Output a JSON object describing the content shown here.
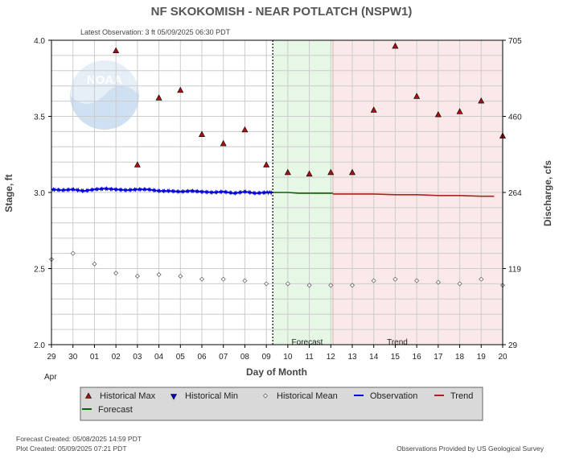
{
  "chart_data": {
    "type": "scatter",
    "title": "NF SKOKOMISH - NEAR POTLATCH  (NSPW1)",
    "subtitle": "Latest Observation: 3 ft 05/09/2025 06:30 PDT",
    "xlabel": "Day of Month",
    "ylabel_left": "Stage, ft",
    "ylabel_right": "Discharge, cfs",
    "month_label": "Apr",
    "x_ticks": [
      "29",
      "30",
      "01",
      "02",
      "03",
      "04",
      "05",
      "06",
      "07",
      "08",
      "09",
      "10",
      "11",
      "12",
      "13",
      "14",
      "15",
      "16",
      "17",
      "18",
      "19",
      "20"
    ],
    "y_left_ticks": [
      "4.0",
      "3.5",
      "3.0",
      "2.5",
      "2.0"
    ],
    "y_left_tick_values": [
      4.0,
      3.5,
      3.0,
      2.5,
      2.0
    ],
    "y_right_ticks": [
      "705",
      "460",
      "264",
      "119",
      "29"
    ],
    "y_right_tick_stage": [
      4.0,
      3.5,
      3.0,
      2.5,
      2.0
    ],
    "ylim": [
      2.0,
      4.0
    ],
    "xlim": [
      0,
      21
    ],
    "grid": true,
    "logo_text": "NOAA",
    "latest_observation_index": 10.3,
    "forecast_region": [
      10.3,
      13.1
    ],
    "trend_region": [
      13.1,
      21
    ],
    "forecast_label": "Forecast",
    "trend_label": "Trend",
    "colors": {
      "historical_max": "#aa1111",
      "historical_min": "#0000cc",
      "historical_mean": "#666666",
      "observation": "#0000dd",
      "trend": "#aa2222",
      "forecast": "#006600",
      "forecast_bg": "#e6f7e6",
      "trend_bg": "#fbe8e8"
    },
    "series": [
      {
        "name": "Historical Max",
        "points": [
          [
            3,
            3.93
          ],
          [
            4,
            3.18
          ],
          [
            5,
            3.62
          ],
          [
            6,
            3.67
          ],
          [
            7,
            3.38
          ],
          [
            8,
            3.32
          ],
          [
            9,
            3.41
          ],
          [
            10,
            3.18
          ],
          [
            11,
            3.13
          ],
          [
            12,
            3.12
          ],
          [
            13,
            3.13
          ],
          [
            14,
            3.13
          ],
          [
            15,
            3.54
          ],
          [
            16,
            3.96
          ],
          [
            17,
            3.63
          ],
          [
            18,
            3.51
          ],
          [
            19,
            3.53
          ],
          [
            20,
            3.6
          ],
          [
            21,
            3.37
          ]
        ]
      },
      {
        "name": "Historical Min",
        "points": []
      },
      {
        "name": "Historical Mean",
        "points": [
          [
            0,
            2.56
          ],
          [
            1,
            2.6
          ],
          [
            2,
            2.53
          ],
          [
            3,
            2.47
          ],
          [
            4,
            2.45
          ],
          [
            5,
            2.46
          ],
          [
            6,
            2.45
          ],
          [
            7,
            2.43
          ],
          [
            8,
            2.43
          ],
          [
            9,
            2.42
          ],
          [
            10,
            2.4
          ],
          [
            11,
            2.4
          ],
          [
            12,
            2.39
          ],
          [
            13,
            2.39
          ],
          [
            14,
            2.39
          ],
          [
            15,
            2.42
          ],
          [
            16,
            2.43
          ],
          [
            17,
            2.42
          ],
          [
            18,
            2.41
          ],
          [
            19,
            2.4
          ],
          [
            20,
            2.43
          ],
          [
            21,
            2.39
          ]
        ]
      },
      {
        "name": "Observation",
        "points": [
          [
            0,
            3.02
          ],
          [
            0.5,
            3.015
          ],
          [
            1,
            3.02
          ],
          [
            1.5,
            3.01
          ],
          [
            2,
            3.02
          ],
          [
            2.5,
            3.025
          ],
          [
            3,
            3.02
          ],
          [
            3.5,
            3.015
          ],
          [
            4,
            3.02
          ],
          [
            4.5,
            3.02
          ],
          [
            5,
            3.01
          ],
          [
            5.5,
            3.01
          ],
          [
            6,
            3.005
          ],
          [
            6.5,
            3.01
          ],
          [
            7,
            3.005
          ],
          [
            7.5,
            3.0
          ],
          [
            8,
            3.005
          ],
          [
            8.5,
            2.995
          ],
          [
            9,
            3.005
          ],
          [
            9.5,
            2.995
          ],
          [
            10,
            3.0
          ],
          [
            10.3,
            3.0
          ]
        ]
      },
      {
        "name": "Forecast",
        "points": [
          [
            10.3,
            3.0
          ],
          [
            11,
            3.0
          ],
          [
            11.5,
            2.995
          ],
          [
            12,
            2.995
          ],
          [
            13.1,
            2.995
          ]
        ]
      },
      {
        "name": "Trend",
        "points": [
          [
            13.1,
            2.99
          ],
          [
            14,
            2.99
          ],
          [
            15,
            2.99
          ],
          [
            16,
            2.985
          ],
          [
            17,
            2.985
          ],
          [
            18,
            2.98
          ],
          [
            19,
            2.98
          ],
          [
            20,
            2.975
          ],
          [
            20.6,
            2.975
          ]
        ]
      }
    ],
    "legend": [
      {
        "name": "Historical Max",
        "marker": "triangle-up"
      },
      {
        "name": "Historical Min",
        "marker": "triangle-down"
      },
      {
        "name": "Historical Mean",
        "marker": "diamond"
      },
      {
        "name": "Observation",
        "marker": "line"
      },
      {
        "name": "Trend",
        "marker": "line"
      },
      {
        "name": "Forecast",
        "marker": "line"
      }
    ]
  },
  "footer": {
    "forecast_created": "Forecast Created: 05/08/2025 14:59 PDT",
    "plot_created": "Plot Created: 05/09/2025 07:21 PDT",
    "credit": "Observations Provided by US Geological Survey"
  }
}
